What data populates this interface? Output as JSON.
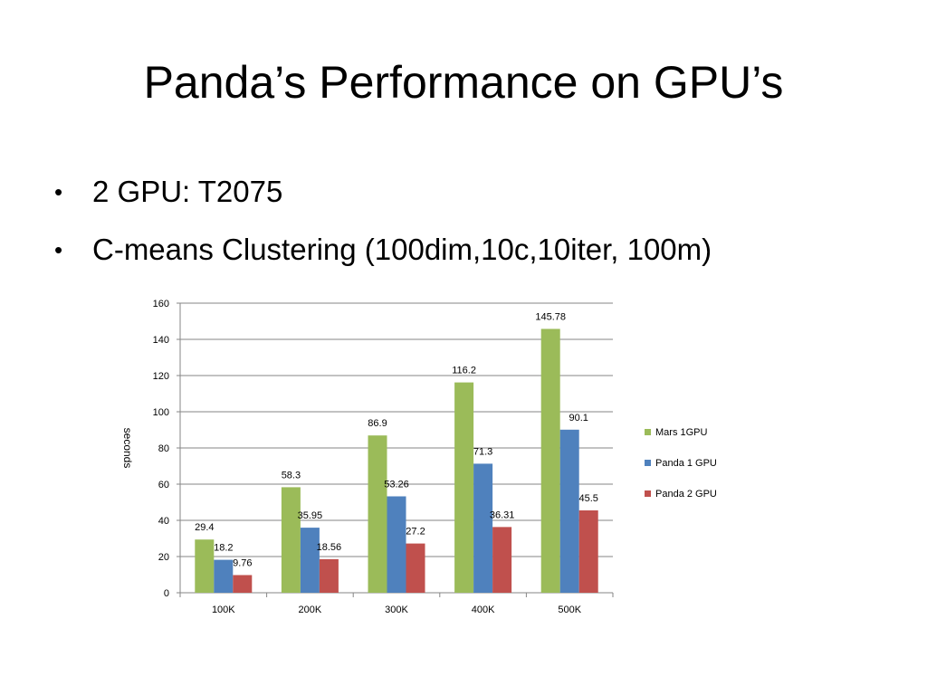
{
  "slide": {
    "title": "Panda’s Performance on GPU’s",
    "bullets": [
      "2 GPU: T2075",
      "C-means Clustering (100dim,10c,10iter, 100m)"
    ],
    "bullet_glyph": "•"
  },
  "chart_data": {
    "type": "bar",
    "title": "",
    "xlabel": "",
    "ylabel": "seconds",
    "categories": [
      "100K",
      "200K",
      "300K",
      "400K",
      "500K"
    ],
    "ylim": [
      0,
      160
    ],
    "yticks": [
      0,
      20,
      40,
      60,
      80,
      100,
      120,
      140,
      160
    ],
    "grid": true,
    "legend_position": "right",
    "series": [
      {
        "name": "Mars 1GPU",
        "color": "#9BBB59",
        "values": [
          29.4,
          58.3,
          86.9,
          116.2,
          145.78
        ]
      },
      {
        "name": "Panda 1 GPU",
        "color": "#4F81BD",
        "values": [
          18.2,
          35.95,
          53.26,
          71.3,
          90.1
        ]
      },
      {
        "name": "Panda 2 GPU",
        "color": "#C0504D",
        "values": [
          9.76,
          18.56,
          27.2,
          36.31,
          45.5
        ]
      }
    ]
  }
}
